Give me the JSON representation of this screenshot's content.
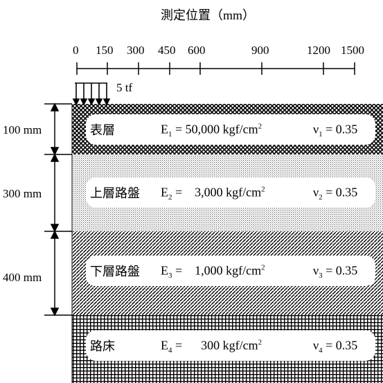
{
  "title": "測定位置（mm）",
  "positions": [
    "0",
    "150",
    "300",
    "450",
    "600",
    "900",
    "1200",
    "1500"
  ],
  "load_label": "5 tf",
  "thickness_labels": [
    "100 mm",
    "300 mm",
    "400 mm"
  ],
  "layers": [
    {
      "name": "表層",
      "E_sym": "E",
      "E_idx": "1",
      "E_value": "50,000 kgf/cm",
      "E_exp": "2",
      "nu_sym": "ν",
      "nu_idx": "1",
      "nu_value": "= 0.35",
      "pattern": "crosshatch"
    },
    {
      "name": "上層路盤",
      "E_sym": "E",
      "E_idx": "2",
      "E_value": "3,000 kgf/cm",
      "E_exp": "2",
      "nu_sym": "ν",
      "nu_idx": "2",
      "nu_value": "= 0.35",
      "pattern": "dots"
    },
    {
      "name": "下層路盤",
      "E_sym": "E",
      "E_idx": "3",
      "E_value": "1,000 kgf/cm",
      "E_exp": "2",
      "nu_sym": "ν",
      "nu_idx": "3",
      "nu_value": "= 0.35",
      "pattern": "diagonal"
    },
    {
      "name": "路床",
      "E_sym": "E",
      "E_idx": "4",
      "E_value": "300 kgf/cm",
      "E_exp": "2",
      "nu_sym": "ν",
      "nu_idx": "4",
      "nu_value": "= 0.35",
      "pattern": "grid"
    }
  ]
}
